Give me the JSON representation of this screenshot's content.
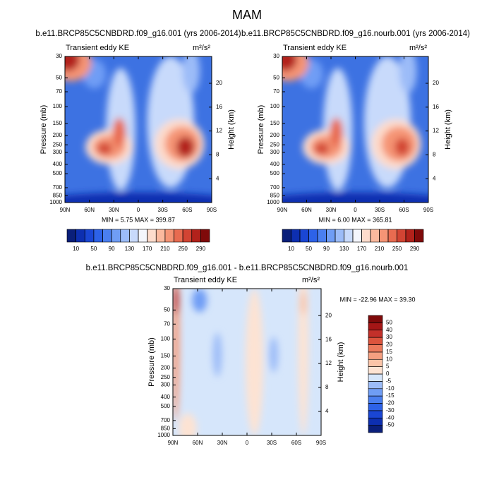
{
  "title": "MAM",
  "chart_data": [
    {
      "type": "contour",
      "title": "b.e11.BRCP85C5CNBDRD.f09_g16.001 (yrs 2006-2014)",
      "left_label": "Transient eddy KE",
      "unit": "m²/s²",
      "ylabel": "Pressure (mb)",
      "y2label": "Height (km)",
      "xlim": [
        90,
        -90
      ],
      "xticks": [
        {
          "value": 90,
          "label": "90N"
        },
        {
          "value": 60,
          "label": "60N"
        },
        {
          "value": 30,
          "label": "30N"
        },
        0,
        {
          "value": -30,
          "label": "30S"
        },
        {
          "value": -60,
          "label": "60S"
        },
        {
          "value": -90,
          "label": "90S"
        }
      ],
      "ylim": [
        1000,
        30
      ],
      "log_y": true,
      "yticks": [
        30,
        50,
        70,
        100,
        150,
        200,
        250,
        300,
        400,
        500,
        700,
        850,
        1000
      ],
      "y2lim": [
        0,
        24.5
      ],
      "y2ticks": [
        4,
        8,
        12,
        16,
        20
      ],
      "stats": "MIN =   5.75  MAX = 399.87",
      "colorbar": {
        "orientation": "horizontal",
        "levels": [
          10,
          30,
          50,
          70,
          90,
          110,
          130,
          150,
          170,
          190,
          210,
          230,
          250,
          270,
          290
        ],
        "ticks": [
          10,
          50,
          90,
          130,
          170,
          210,
          250,
          290
        ],
        "colors": [
          "#0a1f7a",
          "#0d2fb0",
          "#1a46d4",
          "#2d62e8",
          "#4a7ff0",
          "#6f9df5",
          "#9cbcf8",
          "#c8dafb",
          "#f4f6fc",
          "#fddccc",
          "#fbb99e",
          "#f59475",
          "#e86b50",
          "#d24433",
          "#b2221b",
          "#7f0a0a"
        ]
      }
    },
    {
      "type": "contour",
      "title": "b.e11.BRCP85C5CNBDRD.f09_g16.nourb.001 (yrs 2006-2014)",
      "left_label": "Transient eddy KE",
      "unit": "m²/s²",
      "ylabel": "Pressure (mb)",
      "y2label": "Height (km)",
      "xlim": [
        90,
        -90
      ],
      "xticks": [
        {
          "value": 90,
          "label": "90N"
        },
        {
          "value": 60,
          "label": "60N"
        },
        {
          "value": 30,
          "label": "30N"
        },
        0,
        {
          "value": -30,
          "label": "30S"
        },
        {
          "value": -60,
          "label": "60S"
        },
        {
          "value": -90,
          "label": "90S"
        }
      ],
      "ylim": [
        1000,
        30
      ],
      "log_y": true,
      "yticks": [
        30,
        50,
        70,
        100,
        150,
        200,
        250,
        300,
        400,
        500,
        700,
        850,
        1000
      ],
      "y2lim": [
        0,
        24.5
      ],
      "y2ticks": [
        4,
        8,
        12,
        16,
        20
      ],
      "stats": "MIN =   6.00  MAX = 365.81",
      "colorbar": {
        "orientation": "horizontal",
        "levels": [
          10,
          30,
          50,
          70,
          90,
          110,
          130,
          150,
          170,
          190,
          210,
          230,
          250,
          270,
          290
        ],
        "ticks": [
          10,
          50,
          90,
          130,
          170,
          210,
          250,
          290
        ],
        "colors": [
          "#0a1f7a",
          "#0d2fb0",
          "#1a46d4",
          "#2d62e8",
          "#4a7ff0",
          "#6f9df5",
          "#9cbcf8",
          "#c8dafb",
          "#f4f6fc",
          "#fddccc",
          "#fbb99e",
          "#f59475",
          "#e86b50",
          "#d24433",
          "#b2221b",
          "#7f0a0a"
        ]
      }
    },
    {
      "type": "contour",
      "title": "b.e11.BRCP85C5CNBDRD.f09_g16.001 - b.e11.BRCP85C5CNBDRD.f09_g16.nourb.001",
      "left_label": "Transient eddy KE",
      "unit": "m²/s²",
      "ylabel": "Pressure (mb)",
      "y2label": "Height (km)",
      "xlim": [
        90,
        -90
      ],
      "xticks": [
        {
          "value": 90,
          "label": "90N"
        },
        {
          "value": 60,
          "label": "60N"
        },
        {
          "value": 30,
          "label": "30N"
        },
        0,
        {
          "value": -30,
          "label": "30S"
        },
        {
          "value": -60,
          "label": "60S"
        },
        {
          "value": -90,
          "label": "90S"
        }
      ],
      "ylim": [
        1000,
        30
      ],
      "log_y": true,
      "yticks": [
        30,
        50,
        70,
        100,
        150,
        200,
        250,
        300,
        400,
        500,
        700,
        850,
        1000
      ],
      "y2lim": [
        0,
        24.5
      ],
      "y2ticks": [
        4,
        8,
        12,
        16,
        20
      ],
      "stats": "MIN = -22.96  MAX =  39.30",
      "colorbar": {
        "orientation": "vertical",
        "levels": [
          -50,
          -40,
          -30,
          -20,
          -15,
          -10,
          -5,
          0,
          5,
          10,
          15,
          20,
          30,
          40,
          50
        ],
        "colors": [
          "#0a1f7a",
          "#0d2fb0",
          "#1a46d4",
          "#2d62e8",
          "#4a7ff0",
          "#6f9df5",
          "#9cbcf8",
          "#d6e6fb",
          "#fde3d3",
          "#fbc4a8",
          "#f59f80",
          "#ec7a5c",
          "#dc543d",
          "#c3302a",
          "#a51616",
          "#7f0a0a"
        ]
      }
    }
  ]
}
